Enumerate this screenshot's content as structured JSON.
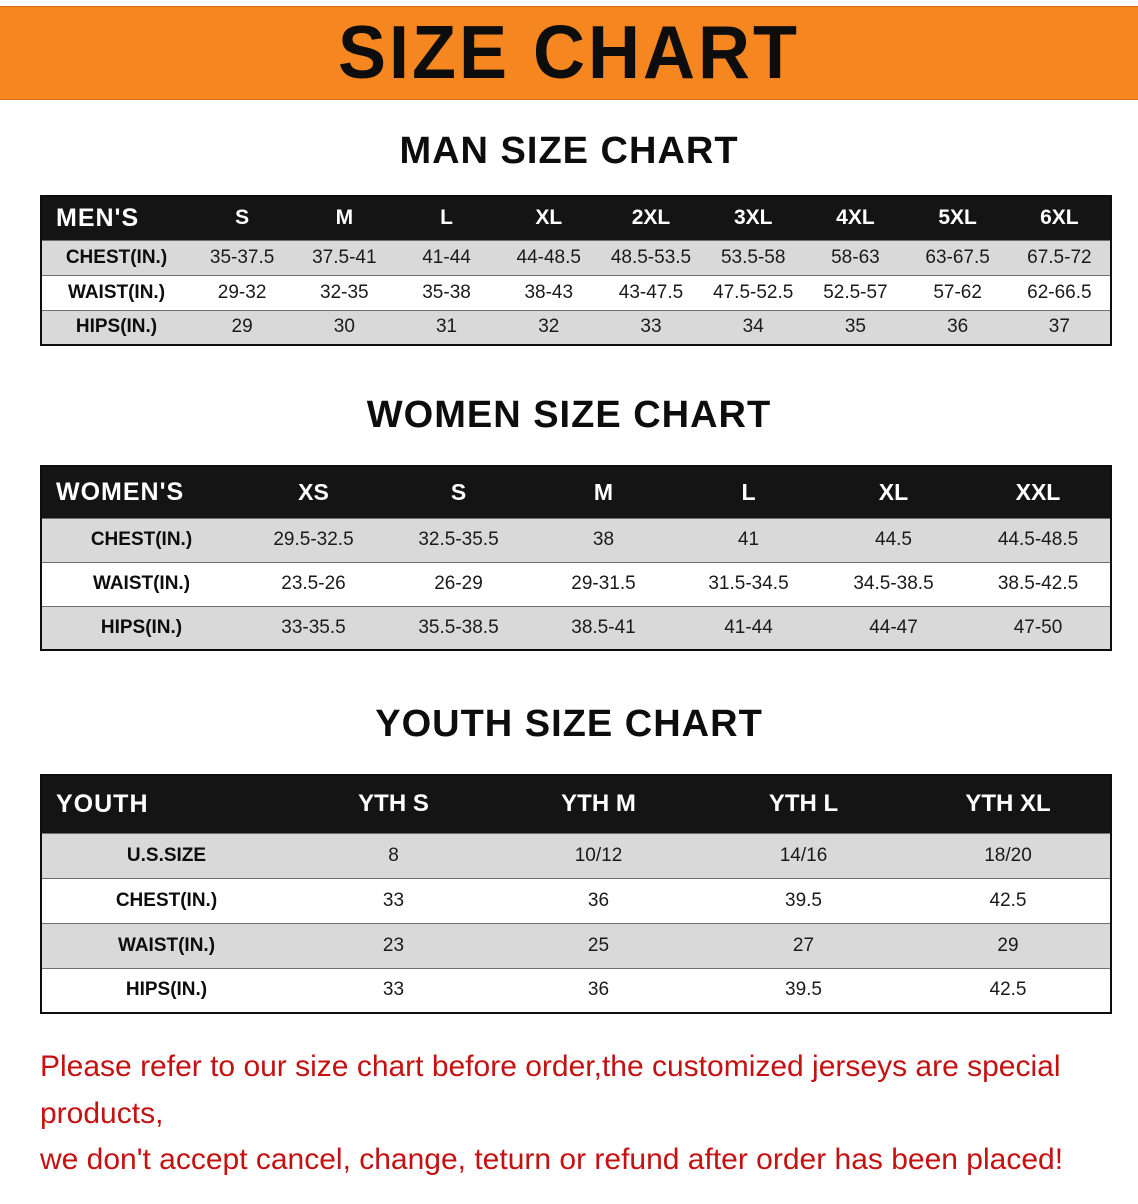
{
  "banner": {
    "title": "SIZE CHART",
    "bg_color": "#f6861f",
    "text_color": "#0d0d0d"
  },
  "colors": {
    "table_header_bg": "#141414",
    "row_stripe": "#d9d9d9",
    "disclaimer_red": "#c41111"
  },
  "sections": [
    {
      "heading": "MAN SIZE CHART",
      "table": {
        "label": "MEN'S",
        "columns": [
          "S",
          "M",
          "L",
          "XL",
          "2XL",
          "3XL",
          "4XL",
          "5XL",
          "6XL"
        ],
        "rows": [
          {
            "label": "CHEST(IN.)",
            "values": [
              "35-37.5",
              "37.5-41",
              "41-44",
              "44-48.5",
              "48.5-53.5",
              "53.5-58",
              "58-63",
              "63-67.5",
              "67.5-72"
            ]
          },
          {
            "label": "WAIST(IN.)",
            "values": [
              "29-32",
              "32-35",
              "35-38",
              "38-43",
              "43-47.5",
              "47.5-52.5",
              "52.5-57",
              "57-62",
              "62-66.5"
            ]
          },
          {
            "label": "HIPS(IN.)",
            "values": [
              "29",
              "30",
              "31",
              "32",
              "33",
              "34",
              "35",
              "36",
              "37"
            ]
          }
        ]
      }
    },
    {
      "heading": "WOMEN SIZE CHART",
      "table": {
        "label": "WOMEN'S",
        "columns": [
          "XS",
          "S",
          "M",
          "L",
          "XL",
          "XXL"
        ],
        "rows": [
          {
            "label": "CHEST(IN.)",
            "values": [
              "29.5-32.5",
              "32.5-35.5",
              "38",
              "41",
              "44.5",
              "44.5-48.5"
            ]
          },
          {
            "label": "WAIST(IN.)",
            "values": [
              "23.5-26",
              "26-29",
              "29-31.5",
              "31.5-34.5",
              "34.5-38.5",
              "38.5-42.5"
            ]
          },
          {
            "label": "HIPS(IN.)",
            "values": [
              "33-35.5",
              "35.5-38.5",
              "38.5-41",
              "41-44",
              "44-47",
              "47-50"
            ]
          }
        ]
      }
    },
    {
      "heading": "YOUTH SIZE CHART",
      "table": {
        "label": "YOUTH",
        "columns": [
          "YTH S",
          "YTH M",
          "YTH L",
          "YTH XL"
        ],
        "rows": [
          {
            "label": "U.S.SIZE",
            "values": [
              "8",
              "10/12",
              "14/16",
              "18/20"
            ]
          },
          {
            "label": "CHEST(IN.)",
            "values": [
              "33",
              "36",
              "39.5",
              "42.5"
            ]
          },
          {
            "label": "WAIST(IN.)",
            "values": [
              "23",
              "25",
              "27",
              "29"
            ]
          },
          {
            "label": "HIPS(IN.)",
            "values": [
              "33",
              "36",
              "39.5",
              "42.5"
            ]
          }
        ]
      }
    }
  ],
  "disclaimer": {
    "line1": "Please refer to our size chart before order,the customized jerseys are special products,",
    "line2": "we don't accept cancel, change, teturn or refund after order has been placed!"
  }
}
